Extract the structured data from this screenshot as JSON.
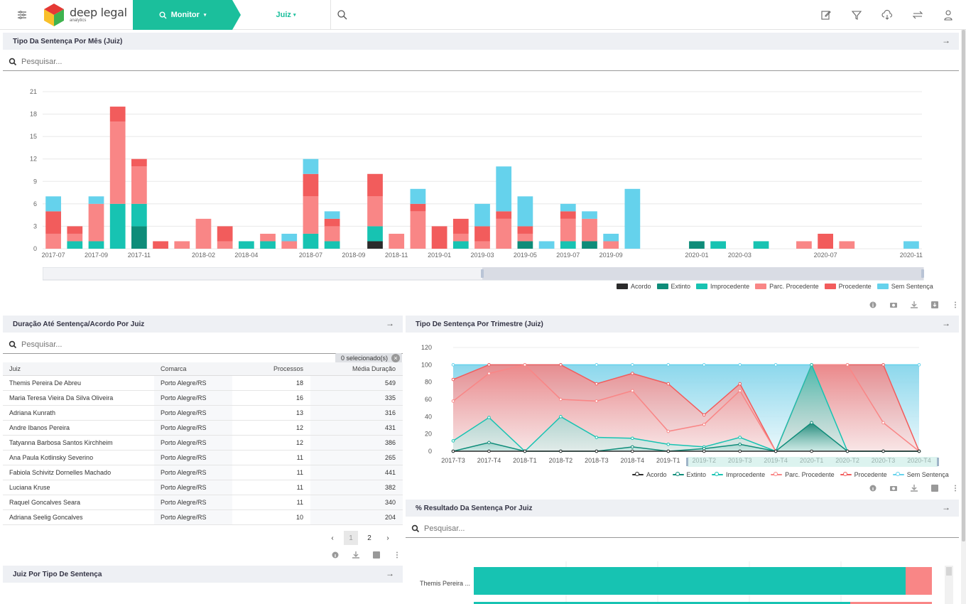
{
  "header": {
    "logo_title": "deep legal",
    "logo_subtitle": "analytics",
    "nav_monitor": "Monitor",
    "nav_juiz": "Juiz"
  },
  "panel_mes": {
    "title": "Tipo Da Sentença Por Mês (Juiz)",
    "search_placeholder": "Pesquisar..."
  },
  "panel_duracao": {
    "title": "Duração Até Sentença/Acordo Por Juiz",
    "search_placeholder": "Pesquisar...",
    "selected": "0 selecionado(s)",
    "columns": [
      "Juiz",
      "Comarca",
      "Processos",
      "Média Duração"
    ],
    "rows": [
      [
        "Themis Pereira De Abreu",
        "Porto Alegre/RS",
        "18",
        "549"
      ],
      [
        "Maria Teresa Vieira Da Silva Oliveira",
        "Porto Alegre/RS",
        "16",
        "335"
      ],
      [
        "Adriana Kunrath",
        "Porto Alegre/RS",
        "13",
        "316"
      ],
      [
        "Andre Ibanos Pereira",
        "Porto Alegre/RS",
        "12",
        "431"
      ],
      [
        "Tatyanna Barbosa Santos Kirchheim",
        "Porto Alegre/RS",
        "12",
        "386"
      ],
      [
        "Ana Paula Kotlinsky Severino",
        "Porto Alegre/RS",
        "11",
        "265"
      ],
      [
        "Fabiola Schivitz Dornelles Machado",
        "Porto Alegre/RS",
        "11",
        "441"
      ],
      [
        "Luciana Kruse",
        "Porto Alegre/RS",
        "11",
        "382"
      ],
      [
        "Raquel Goncalves Seara",
        "Porto Alegre/RS",
        "11",
        "340"
      ],
      [
        "Adriana Seelig Goncalves",
        "Porto Alegre/RS",
        "10",
        "204"
      ]
    ],
    "pages": [
      "1",
      "2"
    ]
  },
  "panel_tipo_juiz": {
    "title": "Juiz Por Tipo De Sentença"
  },
  "panel_trimestre": {
    "title": "Tipo De Sentença Por Trimestre (Juiz)"
  },
  "panel_resultado": {
    "title": "% Resultado Da Sentença Por Juiz",
    "search_placeholder": "Pesquisar...",
    "row_label": "Themis Pereira ..."
  },
  "colors": {
    "Acordo": "#2b2b2b",
    "Extinto": "#0e8c79",
    "Improcedente": "#17c3b2",
    "Parc. Procedente": "#f98686",
    "Procedente": "#f25c5c",
    "Sem Sentença": "#65d2ec"
  },
  "chart_data": [
    {
      "type": "bar",
      "stacked": true,
      "x": [
        "2017-07",
        "2017-08",
        "2017-09",
        "2017-10",
        "2017-11",
        "2017-12",
        "2018-01",
        "2018-02",
        "2018-03",
        "2018-04",
        "2018-05",
        "2018-06",
        "2018-07",
        "2018-08",
        "2018-09",
        "2018-10",
        "2018-11",
        "2018-12",
        "2019-01",
        "2019-02",
        "2019-03",
        "2019-04",
        "2019-05",
        "2019-06",
        "2019-07",
        "2019-08",
        "2019-09",
        "2019-10",
        "2019-11",
        "2019-12",
        "2020-01",
        "2020-02",
        "2020-03",
        "2020-04",
        "2020-05",
        "2020-06",
        "2020-07",
        "2020-08",
        "2020-09",
        "2020-10",
        "2020-11"
      ],
      "tick_labels": [
        "2017-07",
        "2017-09",
        "2017-11",
        "2018-02",
        "2018-04",
        "2018-07",
        "2018-09",
        "2018-11",
        "2019-01",
        "2019-03",
        "2019-05",
        "2019-07",
        "2019-09",
        "2020-01",
        "2020-03",
        "2020-07",
        "2020-11"
      ],
      "ylim": [
        0,
        21
      ],
      "yticks": [
        0,
        3,
        6,
        9,
        12,
        15,
        18,
        21
      ],
      "series": [
        {
          "name": "Acordo",
          "values": [
            0,
            0,
            0,
            0,
            0,
            0,
            0,
            0,
            0,
            0,
            0,
            0,
            0,
            0,
            0,
            1,
            0,
            0,
            0,
            0,
            0,
            0,
            0,
            0,
            0,
            0,
            0,
            0,
            0,
            0,
            0,
            0,
            0,
            0,
            0,
            0,
            0,
            0,
            0,
            0,
            0
          ]
        },
        {
          "name": "Extinto",
          "values": [
            0,
            0,
            0,
            0,
            3,
            0,
            0,
            0,
            0,
            0,
            0,
            0,
            0,
            0,
            0,
            0,
            0,
            0,
            0,
            0,
            0,
            0,
            1,
            0,
            0,
            1,
            0,
            0,
            0,
            0,
            1,
            0,
            0,
            0,
            0,
            0,
            0,
            0,
            0,
            0,
            0
          ]
        },
        {
          "name": "Improcedente",
          "values": [
            0,
            1,
            1,
            6,
            3,
            0,
            0,
            0,
            0,
            1,
            1,
            0,
            2,
            1,
            0,
            2,
            0,
            0,
            0,
            1,
            0,
            0,
            0,
            0,
            1,
            0,
            0,
            0,
            0,
            0,
            0,
            1,
            0,
            1,
            0,
            0,
            0,
            0,
            0,
            0,
            0
          ]
        },
        {
          "name": "Parc. Procedente",
          "values": [
            2,
            1,
            5,
            11,
            5,
            0,
            1,
            4,
            1,
            0,
            1,
            1,
            5,
            2,
            0,
            4,
            2,
            5,
            0,
            1,
            1,
            4,
            1,
            0,
            3,
            3,
            1,
            0,
            0,
            0,
            0,
            0,
            0,
            0,
            0,
            1,
            0,
            1,
            0,
            0,
            0
          ]
        },
        {
          "name": "Procedente",
          "values": [
            3,
            1,
            0,
            2,
            1,
            1,
            0,
            0,
            2,
            0,
            0,
            0,
            3,
            1,
            0,
            3,
            0,
            1,
            3,
            2,
            2,
            1,
            1,
            0,
            1,
            0,
            0,
            0,
            0,
            0,
            0,
            0,
            0,
            0,
            0,
            0,
            2,
            0,
            0,
            0,
            0
          ]
        },
        {
          "name": "Sem Sentença",
          "values": [
            2,
            0,
            1,
            0,
            0,
            0,
            0,
            0,
            0,
            0,
            0,
            1,
            2,
            1,
            0,
            0,
            0,
            2,
            0,
            0,
            3,
            6,
            4,
            1,
            1,
            1,
            1,
            8,
            0,
            0,
            0,
            0,
            0,
            0,
            0,
            0,
            0,
            0,
            0,
            0,
            1
          ]
        }
      ]
    },
    {
      "type": "area",
      "stacked_percent": true,
      "x": [
        "2017-T3",
        "2017-T4",
        "2018-T1",
        "2018-T2",
        "2018-T3",
        "2018-T4",
        "2019-T1",
        "2019-T2",
        "2019-T3",
        "2019-T4",
        "2020-T1",
        "2020-T2",
        "2020-T3",
        "2020-T4"
      ],
      "ylim": [
        0,
        120
      ],
      "yticks": [
        0,
        20,
        40,
        60,
        80,
        100,
        120
      ],
      "series": [
        {
          "name": "Acordo",
          "values": [
            0,
            0,
            0,
            0,
            0,
            0,
            0,
            0,
            0,
            0,
            0,
            0,
            0,
            0
          ]
        },
        {
          "name": "Extinto",
          "values": [
            0,
            10,
            0,
            0,
            0,
            5,
            0,
            3,
            8,
            0,
            33,
            0,
            0,
            0
          ]
        },
        {
          "name": "Improcedente",
          "values": [
            12,
            39,
            0,
            40,
            16,
            15,
            8,
            5,
            16,
            0,
            100,
            0,
            0,
            0
          ]
        },
        {
          "name": "Parc. Procedente",
          "values": [
            58,
            90,
            100,
            60,
            58,
            70,
            23,
            31,
            70,
            0,
            100,
            100,
            33,
            0
          ]
        },
        {
          "name": "Procedente",
          "values": [
            83,
            100,
            100,
            100,
            78,
            90,
            78,
            42,
            78,
            0,
            100,
            100,
            100,
            0
          ]
        },
        {
          "name": "Sem Sentença",
          "values": [
            100,
            100,
            100,
            100,
            100,
            100,
            100,
            100,
            100,
            100,
            100,
            100,
            100,
            100
          ]
        }
      ]
    }
  ]
}
